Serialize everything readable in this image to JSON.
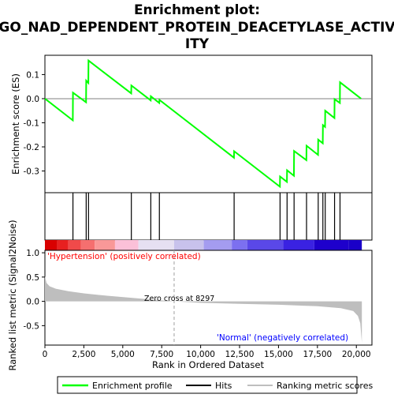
{
  "chart_data": {
    "type": "line",
    "title": "Enrichment plot: GO_NAD_DEPENDENT_PROTEIN_DEACETYLASE_ACTIVITY",
    "title_lines": [
      "Enrichment plot:",
      "GO_NAD_DEPENDENT_PROTEIN_DEACETYLASE_ACTIV",
      "ITY"
    ],
    "es_ylabel": "Enrichment score (ES)",
    "metric_ylabel": "Ranked list metric (Signal2Noise)",
    "xlabel": "Rank in Ordered Dataset",
    "x_ticks": [
      "0",
      "2,500",
      "5,000",
      "7,500",
      "10,000",
      "12,500",
      "15,000",
      "17,500",
      "20,000"
    ],
    "x_tick_values": [
      0,
      2500,
      5000,
      7500,
      10000,
      12500,
      15000,
      17500,
      20000
    ],
    "xlim": [
      0,
      21000
    ],
    "es_ylim": [
      -0.39,
      0.18
    ],
    "es_ticks": [
      "0.1",
      "0.0",
      "-0.1",
      "-0.2",
      "-0.3"
    ],
    "es_tick_values": [
      0.1,
      0.0,
      -0.1,
      -0.2,
      -0.3
    ],
    "metric_ylim": [
      -0.9,
      1.05
    ],
    "metric_ticks": [
      "1.0",
      "0.5",
      "0.0",
      "-0.5"
    ],
    "metric_tick_values": [
      1.0,
      0.5,
      0.0,
      -0.5
    ],
    "hits": [
      1800,
      2650,
      2800,
      5550,
      6800,
      7350,
      12150,
      15100,
      15550,
      16000,
      16800,
      17550,
      17850,
      18000,
      18600,
      18950
    ],
    "es_curve": {
      "x": [
        0,
        1790,
        1800,
        2640,
        2650,
        2790,
        2800,
        5540,
        5550,
        6790,
        6800,
        7340,
        7350,
        12140,
        12150,
        15090,
        15100,
        15540,
        15550,
        15990,
        16000,
        16790,
        16800,
        17540,
        17550,
        17840,
        17850,
        17990,
        18000,
        18590,
        18600,
        18940,
        18950,
        20300
      ],
      "y": [
        0.0,
        -0.09,
        0.025,
        -0.015,
        0.075,
        0.065,
        0.158,
        0.022,
        0.055,
        -0.007,
        0.01,
        -0.018,
        -0.005,
        -0.245,
        -0.218,
        -0.365,
        -0.323,
        -0.345,
        -0.297,
        -0.32,
        -0.217,
        -0.255,
        -0.195,
        -0.233,
        -0.17,
        -0.185,
        -0.11,
        -0.117,
        -0.05,
        -0.08,
        -0.002,
        -0.018,
        0.068,
        0.0
      ]
    },
    "metric_curve": {
      "x": [
        0,
        100,
        300,
        700,
        1500,
        2500,
        4000,
        6000,
        8297,
        10000,
        12500,
        15000,
        17500,
        19000,
        19800,
        20100,
        20250,
        20350
      ],
      "y": [
        0.52,
        0.38,
        0.31,
        0.26,
        0.21,
        0.165,
        0.115,
        0.06,
        0.0,
        -0.03,
        -0.05,
        -0.07,
        -0.1,
        -0.14,
        -0.2,
        -0.3,
        -0.45,
        -0.85
      ]
    },
    "zero_cross_label": "Zero cross at 8297",
    "zero_cross": 8297,
    "pos_label": "'Hypertension' (positively correlated)",
    "neg_label": "'Normal' (negatively correlated)",
    "legend": [
      "Enrichment profile",
      "Hits",
      "Ranking metric scores"
    ],
    "colors": {
      "es_line": "#00ff00",
      "hit": "#000000",
      "metric_fill": "#bebebe",
      "pos_text": "#ff0000",
      "neg_text": "#0000ff",
      "zero_line": "#a0a0a0",
      "bar_colors": [
        "#d90000",
        "#e82020",
        "#f04a4a",
        "#f56f6f",
        "#f99898",
        "#fbc0d8",
        "#e6e0f2",
        "#c8c2ec",
        "#a49cf0",
        "#7c70f0",
        "#5a48e8",
        "#3a22e2",
        "#1e00cc"
      ]
    }
  }
}
